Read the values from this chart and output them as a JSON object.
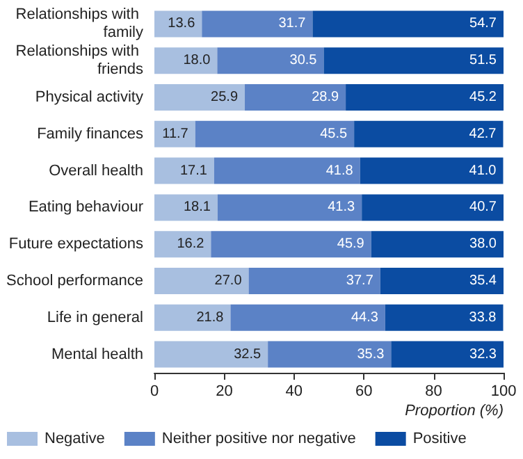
{
  "chart_data": {
    "type": "bar",
    "orientation": "horizontal",
    "stacked": true,
    "xlabel": "Proportion (%)",
    "categories": [
      "Relationships with family",
      "Relationships with friends",
      "Physical activity",
      "Family finances",
      "Overall health",
      "Eating behaviour",
      "Future expectations",
      "School performance",
      "Life in general",
      "Mental health"
    ],
    "series": [
      {
        "name": "Negative",
        "color": "#a8bfe0",
        "values": [
          13.6,
          18.0,
          25.9,
          11.7,
          17.1,
          18.1,
          16.2,
          27.0,
          21.8,
          32.5
        ],
        "value_labels": [
          "13.6",
          "18.0",
          "25.9",
          "11.7",
          "17.1",
          "18.1",
          "16.2",
          "27.0",
          "21.8",
          "32.5"
        ]
      },
      {
        "name": "Neither positive nor negative",
        "color": "#5b82c6",
        "values": [
          31.7,
          30.5,
          28.9,
          45.5,
          41.8,
          41.3,
          45.9,
          37.7,
          44.3,
          35.3
        ],
        "value_labels": [
          "31.7",
          "30.5",
          "28.9",
          "45.5",
          "41.8",
          "41.3",
          "45.9",
          "37.7",
          "44.3",
          "35.3"
        ]
      },
      {
        "name": "Positive",
        "color": "#0b4ca2",
        "values": [
          54.7,
          51.5,
          45.2,
          42.7,
          41.0,
          40.7,
          38.0,
          35.4,
          33.8,
          32.3
        ],
        "value_labels": [
          "54.7",
          "51.5",
          "45.2",
          "42.7",
          "41.0",
          "40.7",
          "38.0",
          "35.4",
          "33.8",
          "32.3"
        ]
      }
    ],
    "xlim": [
      0,
      100
    ],
    "xticks": [
      0,
      20,
      40,
      60,
      80,
      100
    ],
    "grid": false,
    "legend": "bottom left"
  }
}
